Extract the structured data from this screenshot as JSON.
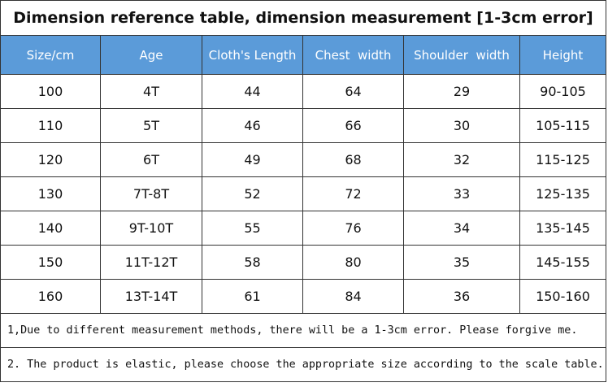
{
  "header": {
    "title": "Dimension reference table, dimension measurement [1-3cm error]"
  },
  "table": {
    "columns": [
      "Size/cm",
      "Age",
      "Cloth's Length",
      "Chest  width",
      "Shoulder  width",
      "Height"
    ],
    "rows": [
      [
        "100",
        "4T",
        "44",
        "64",
        "29",
        "90-105"
      ],
      [
        "110",
        "5T",
        "46",
        "66",
        "30",
        "105-115"
      ],
      [
        "120",
        "6T",
        "49",
        "68",
        "32",
        "115-125"
      ],
      [
        "130",
        "7T-8T",
        "52",
        "72",
        "33",
        "125-135"
      ],
      [
        "140",
        "9T-10T",
        "55",
        "76",
        "34",
        "135-145"
      ],
      [
        "150",
        "11T-12T",
        "58",
        "80",
        "35",
        "145-155"
      ],
      [
        "160",
        "13T-14T",
        "61",
        "84",
        "36",
        "150-160"
      ]
    ]
  },
  "notes": [
    "1,Due to different measurement methods, there will be a 1-3cm error. Please forgive me.",
    "2. The product is elastic, please choose the appropriate size according to the scale table."
  ]
}
